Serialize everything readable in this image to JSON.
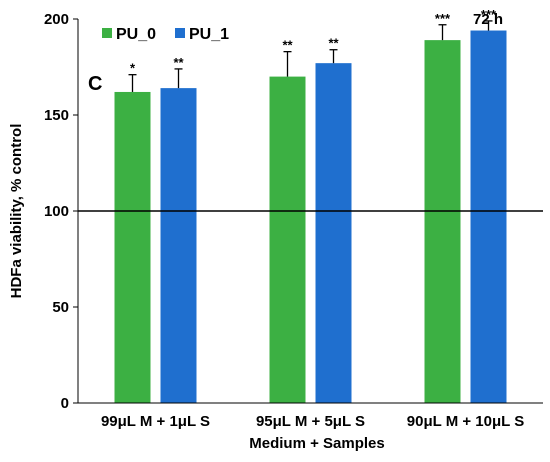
{
  "chart_data": {
    "type": "bar",
    "panel_label": "C",
    "time_label": "72 h",
    "xlabel": "Medium + Samples",
    "ylabel": "HDFa viability, % control",
    "ylim": [
      0,
      200
    ],
    "yticks": [
      0,
      50,
      100,
      150,
      200
    ],
    "reference_line": 100,
    "categories": [
      "99μL M + 1μL S",
      "95μL M + 5μL S",
      "90μL M + 10μL S"
    ],
    "series": [
      {
        "name": "PU_0",
        "color": "#3cb043",
        "values": [
          162,
          170,
          189
        ],
        "errors": [
          9,
          13,
          8
        ],
        "significance": [
          "*",
          "**",
          "***"
        ]
      },
      {
        "name": "PU_1",
        "color": "#1f6fcf",
        "values": [
          164,
          177,
          194
        ],
        "errors": [
          10,
          7,
          5
        ],
        "significance": [
          "**",
          "**",
          "***"
        ]
      }
    ],
    "legend": "top-left",
    "grid": false
  }
}
